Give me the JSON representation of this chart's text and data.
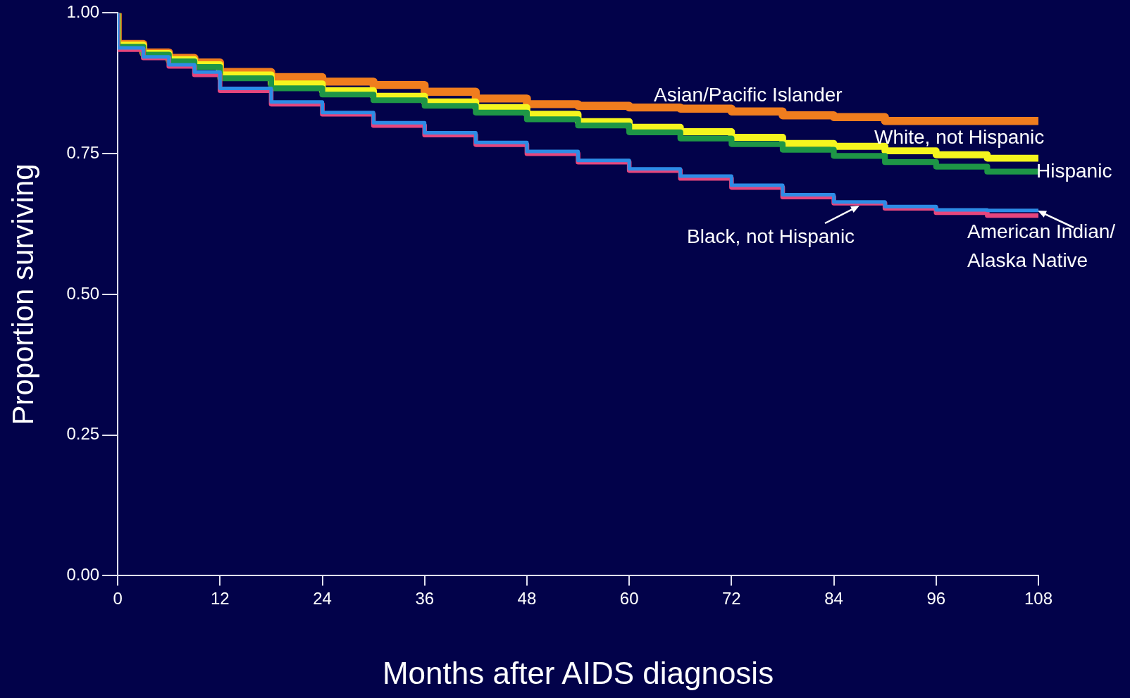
{
  "chart_data": {
    "type": "step",
    "xlabel": "Months after AIDS diagnosis",
    "ylabel": "Proportion surviving",
    "x": [
      0,
      3,
      6,
      9,
      12,
      18,
      24,
      30,
      36,
      42,
      48,
      54,
      60,
      66,
      72,
      78,
      84,
      90,
      96,
      102,
      108
    ],
    "xlim": [
      0,
      108
    ],
    "xticks": [
      0,
      12,
      24,
      36,
      48,
      60,
      72,
      84,
      96,
      108
    ],
    "ylim": [
      0,
      1
    ],
    "yticks": [
      {
        "value": 0,
        "label": "0.00"
      },
      {
        "value": 0.25,
        "label": "0.25"
      },
      {
        "value": 0.5,
        "label": "0.50"
      },
      {
        "value": 0.75,
        "label": "0.75"
      },
      {
        "value": 1,
        "label": "1.00"
      }
    ],
    "grid": false,
    "legend": false,
    "marker": "none",
    "line_style": "solid",
    "series": [
      {
        "name": "Asian/Pacific Islander",
        "color": "#f07d1e",
        "values": [
          1,
          0.945,
          0.93,
          0.92,
          0.912,
          0.895,
          0.886,
          0.878,
          0.872,
          0.86,
          0.848,
          0.838,
          0.835,
          0.832,
          0.83,
          0.825,
          0.818,
          0.815,
          0.808,
          0.808,
          0.808
        ]
      },
      {
        "name": "White, not Hispanic",
        "color": "#f5f51e",
        "values": [
          1,
          0.943,
          0.928,
          0.917,
          0.908,
          0.89,
          0.874,
          0.862,
          0.852,
          0.842,
          0.832,
          0.82,
          0.807,
          0.797,
          0.789,
          0.779,
          0.768,
          0.763,
          0.755,
          0.748,
          0.742
        ]
      },
      {
        "name": "Hispanic",
        "color": "#1e9646",
        "values": [
          1,
          0.94,
          0.926,
          0.914,
          0.904,
          0.884,
          0.866,
          0.855,
          0.845,
          0.835,
          0.823,
          0.811,
          0.8,
          0.788,
          0.777,
          0.767,
          0.757,
          0.746,
          0.735,
          0.727,
          0.718
        ]
      },
      {
        "name": "Black, not Hispanic",
        "color": "#e6467d",
        "values": [
          1,
          0.935,
          0.92,
          0.905,
          0.89,
          0.862,
          0.838,
          0.82,
          0.8,
          0.783,
          0.766,
          0.75,
          0.735,
          0.72,
          0.706,
          0.69,
          0.673,
          0.662,
          0.653,
          0.645,
          0.64
        ]
      },
      {
        "name": "American Indian/Alaska Native",
        "color": "#2d8ce6",
        "values": [
          1,
          0.938,
          0.922,
          0.908,
          0.895,
          0.866,
          0.842,
          0.823,
          0.805,
          0.787,
          0.77,
          0.754,
          0.738,
          0.723,
          0.71,
          0.694,
          0.677,
          0.664,
          0.656,
          0.65,
          0.649
        ]
      }
    ]
  }
}
